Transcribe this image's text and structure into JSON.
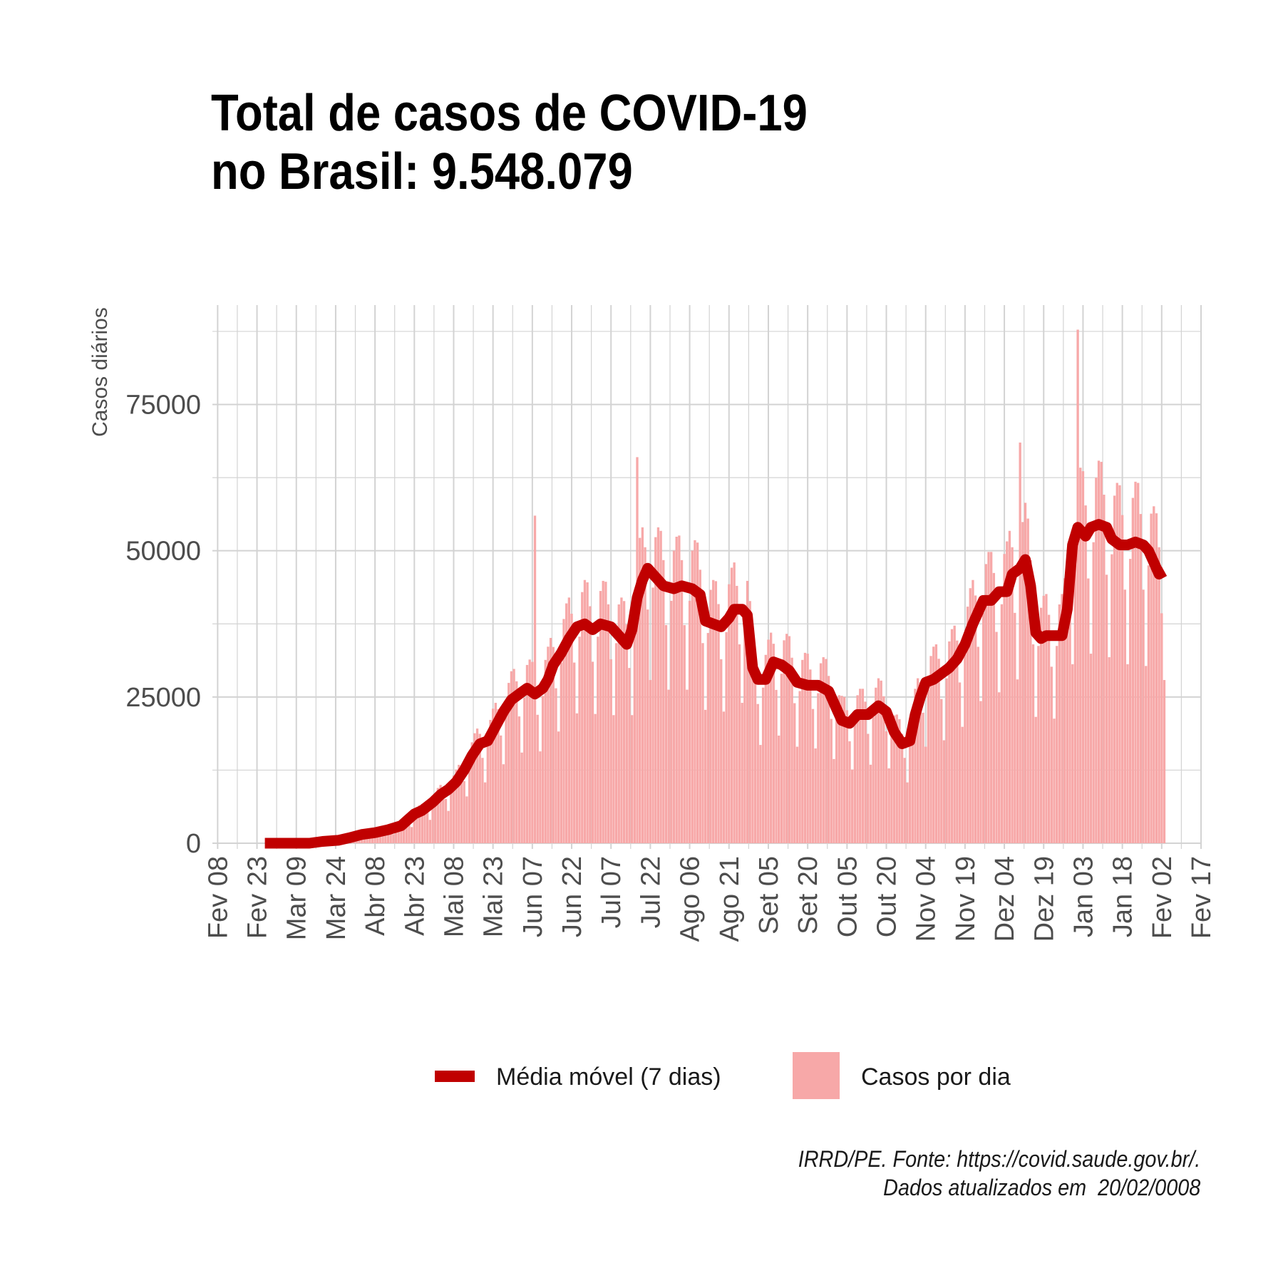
{
  "title_lines": [
    "Total de casos de COVID-19",
    "no Brasil: 9.548.079"
  ],
  "caption_lines": [
    "IRRD/PE. Fonte: https://covid.saude.gov.br/.",
    "Dados atualizados em  20/02/0008"
  ],
  "legend": {
    "line_label": "Média móvel (7 dias)",
    "bar_label": "Casos por dia"
  },
  "colors": {
    "line": "#c00000",
    "bar": "#f7a8a8",
    "grid": "#d3d3d3",
    "tick_text": "#4d4d4d"
  },
  "chart_data": {
    "type": "bar",
    "ylabel": "Casos diários",
    "ylim": [
      0,
      92000
    ],
    "yticks": [
      0,
      25000,
      50000,
      75000
    ],
    "xlim_days": [
      -2,
      375
    ],
    "xticks": [
      {
        "label": "Fev 08",
        "day": 0
      },
      {
        "label": "Fev 23",
        "day": 15
      },
      {
        "label": "Mar 09",
        "day": 30
      },
      {
        "label": "Mar 24",
        "day": 45
      },
      {
        "label": "Abr 08",
        "day": 60
      },
      {
        "label": "Abr 23",
        "day": 75
      },
      {
        "label": "Mai 08",
        "day": 90
      },
      {
        "label": "Mai 23",
        "day": 105
      },
      {
        "label": "Jun 07",
        "day": 120
      },
      {
        "label": "Jun 22",
        "day": 135
      },
      {
        "label": "Jul 07",
        "day": 150
      },
      {
        "label": "Jul 22",
        "day": 165
      },
      {
        "label": "Ago 06",
        "day": 180
      },
      {
        "label": "Ago 21",
        "day": 195
      },
      {
        "label": "Set 05",
        "day": 210
      },
      {
        "label": "Set 20",
        "day": 225
      },
      {
        "label": "Out 05",
        "day": 240
      },
      {
        "label": "Out 20",
        "day": 255
      },
      {
        "label": "Nov 04",
        "day": 270
      },
      {
        "label": "Nov 19",
        "day": 285
      },
      {
        "label": "Dez 04",
        "day": 300
      },
      {
        "label": "Dez 19",
        "day": 315
      },
      {
        "label": "Jan 03",
        "day": 330
      },
      {
        "label": "Jan 18",
        "day": 345
      },
      {
        "label": "Fev 02",
        "day": 360
      },
      {
        "label": "Fev 17",
        "day": 375
      }
    ],
    "series": [
      {
        "name": "Média móvel (7 dias)",
        "type": "line",
        "points": [
          [
            18,
            0
          ],
          [
            25,
            0
          ],
          [
            35,
            0
          ],
          [
            40,
            300
          ],
          [
            46,
            500
          ],
          [
            50,
            900
          ],
          [
            55,
            1500
          ],
          [
            60,
            1800
          ],
          [
            65,
            2300
          ],
          [
            70,
            3000
          ],
          [
            72,
            3800
          ],
          [
            75,
            5000
          ],
          [
            78,
            5600
          ],
          [
            82,
            7000
          ],
          [
            85,
            8300
          ],
          [
            88,
            9200
          ],
          [
            91,
            10500
          ],
          [
            94,
            12500
          ],
          [
            97,
            15000
          ],
          [
            100,
            17000
          ],
          [
            103,
            17500
          ],
          [
            106,
            20000
          ],
          [
            109,
            22500
          ],
          [
            112,
            24500
          ],
          [
            115,
            25500
          ],
          [
            118,
            26500
          ],
          [
            121,
            25500
          ],
          [
            124,
            26500
          ],
          [
            126,
            28000
          ],
          [
            128,
            30500
          ],
          [
            131,
            32500
          ],
          [
            134,
            35000
          ],
          [
            137,
            37000
          ],
          [
            140,
            37500
          ],
          [
            143,
            36500
          ],
          [
            146,
            37500
          ],
          [
            150,
            37000
          ],
          [
            153,
            35500
          ],
          [
            156,
            34000
          ],
          [
            158,
            36500
          ],
          [
            160,
            42000
          ],
          [
            162,
            45000
          ],
          [
            164,
            47000
          ],
          [
            167,
            45500
          ],
          [
            170,
            44000
          ],
          [
            174,
            43500
          ],
          [
            177,
            44000
          ],
          [
            181,
            43500
          ],
          [
            184,
            42500
          ],
          [
            186,
            38000
          ],
          [
            189,
            37500
          ],
          [
            192,
            37000
          ],
          [
            195,
            38500
          ],
          [
            197,
            40000
          ],
          [
            200,
            40000
          ],
          [
            202,
            39000
          ],
          [
            204,
            30000
          ],
          [
            206,
            28000
          ],
          [
            209,
            28000
          ],
          [
            212,
            31000
          ],
          [
            215,
            30500
          ],
          [
            218,
            29500
          ],
          [
            221,
            27500
          ],
          [
            225,
            27000
          ],
          [
            229,
            27000
          ],
          [
            233,
            26000
          ],
          [
            236,
            23000
          ],
          [
            238,
            21000
          ],
          [
            241,
            20500
          ],
          [
            244,
            22000
          ],
          [
            248,
            22000
          ],
          [
            252,
            23500
          ],
          [
            255,
            22500
          ],
          [
            258,
            19000
          ],
          [
            261,
            17000
          ],
          [
            264,
            17500
          ],
          [
            266,
            22000
          ],
          [
            268,
            25000
          ],
          [
            270,
            27500
          ],
          [
            273,
            28000
          ],
          [
            276,
            29000
          ],
          [
            279,
            30000
          ],
          [
            282,
            31500
          ],
          [
            285,
            34000
          ],
          [
            288,
            37500
          ],
          [
            290,
            39500
          ],
          [
            292,
            41500
          ],
          [
            295,
            41500
          ],
          [
            298,
            43000
          ],
          [
            301,
            43000
          ],
          [
            303,
            46000
          ],
          [
            306,
            47000
          ],
          [
            308,
            48500
          ],
          [
            310,
            44000
          ],
          [
            312,
            36000
          ],
          [
            314,
            35000
          ],
          [
            316,
            35500
          ],
          [
            319,
            35500
          ],
          [
            322,
            35500
          ],
          [
            324,
            40000
          ],
          [
            326,
            51000
          ],
          [
            328,
            54000
          ],
          [
            330,
            53000
          ],
          [
            331,
            52500
          ],
          [
            333,
            54000
          ],
          [
            336,
            54500
          ],
          [
            339,
            54000
          ],
          [
            341,
            52000
          ],
          [
            344,
            51000
          ],
          [
            347,
            51000
          ],
          [
            350,
            51500
          ],
          [
            353,
            51000
          ],
          [
            355,
            50000
          ],
          [
            357,
            48000
          ],
          [
            359,
            46000
          ],
          [
            361,
            46500
          ]
        ]
      },
      {
        "name": "Casos por dia",
        "type": "bar",
        "anchors": [
          [
            18,
            0
          ],
          [
            25,
            0
          ],
          [
            35,
            0
          ],
          [
            40,
            300
          ],
          [
            46,
            500
          ],
          [
            50,
            900
          ],
          [
            55,
            1500
          ],
          [
            60,
            1800
          ],
          [
            65,
            2300
          ],
          [
            70,
            3000
          ],
          [
            72,
            3800
          ],
          [
            75,
            5000
          ],
          [
            78,
            5600
          ],
          [
            82,
            7000
          ],
          [
            85,
            8300
          ],
          [
            88,
            9200
          ],
          [
            91,
            10500
          ],
          [
            94,
            12500
          ],
          [
            97,
            15000
          ],
          [
            100,
            17000
          ],
          [
            103,
            17500
          ],
          [
            106,
            20000
          ],
          [
            109,
            22500
          ],
          [
            112,
            24500
          ],
          [
            115,
            25500
          ],
          [
            118,
            26500
          ],
          [
            121,
            25500
          ],
          [
            124,
            26500
          ],
          [
            126,
            28000
          ],
          [
            128,
            30500
          ],
          [
            131,
            32500
          ],
          [
            134,
            35000
          ],
          [
            137,
            37000
          ],
          [
            140,
            37500
          ],
          [
            143,
            36500
          ],
          [
            146,
            37500
          ],
          [
            150,
            37000
          ],
          [
            153,
            35500
          ],
          [
            156,
            34000
          ],
          [
            158,
            36500
          ],
          [
            160,
            42000
          ],
          [
            162,
            45000
          ],
          [
            164,
            47000
          ],
          [
            167,
            45500
          ],
          [
            170,
            44000
          ],
          [
            174,
            43500
          ],
          [
            177,
            44000
          ],
          [
            181,
            43500
          ],
          [
            184,
            42500
          ],
          [
            186,
            38000
          ],
          [
            189,
            37500
          ],
          [
            192,
            37000
          ],
          [
            195,
            38500
          ],
          [
            197,
            40000
          ],
          [
            200,
            40000
          ],
          [
            202,
            39000
          ],
          [
            204,
            30000
          ],
          [
            206,
            28000
          ],
          [
            209,
            28000
          ],
          [
            212,
            31000
          ],
          [
            215,
            30500
          ],
          [
            218,
            29500
          ],
          [
            221,
            27500
          ],
          [
            225,
            27000
          ],
          [
            229,
            27000
          ],
          [
            233,
            26000
          ],
          [
            236,
            23000
          ],
          [
            238,
            21000
          ],
          [
            241,
            20500
          ],
          [
            244,
            22000
          ],
          [
            248,
            22000
          ],
          [
            252,
            23500
          ],
          [
            255,
            22500
          ],
          [
            258,
            19000
          ],
          [
            261,
            17000
          ],
          [
            264,
            17500
          ],
          [
            266,
            22000
          ],
          [
            268,
            25000
          ],
          [
            270,
            27500
          ],
          [
            273,
            28000
          ],
          [
            276,
            29000
          ],
          [
            279,
            30000
          ],
          [
            282,
            31500
          ],
          [
            285,
            34000
          ],
          [
            288,
            37500
          ],
          [
            290,
            39500
          ],
          [
            292,
            41500
          ],
          [
            295,
            41500
          ],
          [
            298,
            43000
          ],
          [
            301,
            43000
          ],
          [
            303,
            46000
          ],
          [
            306,
            47000
          ],
          [
            308,
            48500
          ],
          [
            310,
            44000
          ],
          [
            312,
            36000
          ],
          [
            314,
            35000
          ],
          [
            316,
            35500
          ],
          [
            319,
            35500
          ],
          [
            322,
            35500
          ],
          [
            324,
            40000
          ],
          [
            326,
            51000
          ],
          [
            328,
            54000
          ],
          [
            330,
            53000
          ],
          [
            331,
            52500
          ],
          [
            333,
            54000
          ],
          [
            336,
            54500
          ],
          [
            339,
            54000
          ],
          [
            341,
            52000
          ],
          [
            344,
            51000
          ],
          [
            347,
            51000
          ],
          [
            350,
            51500
          ],
          [
            353,
            51000
          ],
          [
            355,
            50000
          ],
          [
            357,
            48000
          ],
          [
            359,
            46000
          ],
          [
            361,
            46500
          ]
        ],
        "weekly_factors": [
          0.6,
          0.95,
          1.15,
          1.2,
          1.2,
          1.1,
          0.85
        ],
        "peaks": [
          [
            121,
            56000
          ],
          [
            160,
            66000
          ],
          [
            306,
            68500
          ],
          [
            328,
            87800
          ]
        ],
        "first_day": 18,
        "last_day": 361
      }
    ]
  }
}
